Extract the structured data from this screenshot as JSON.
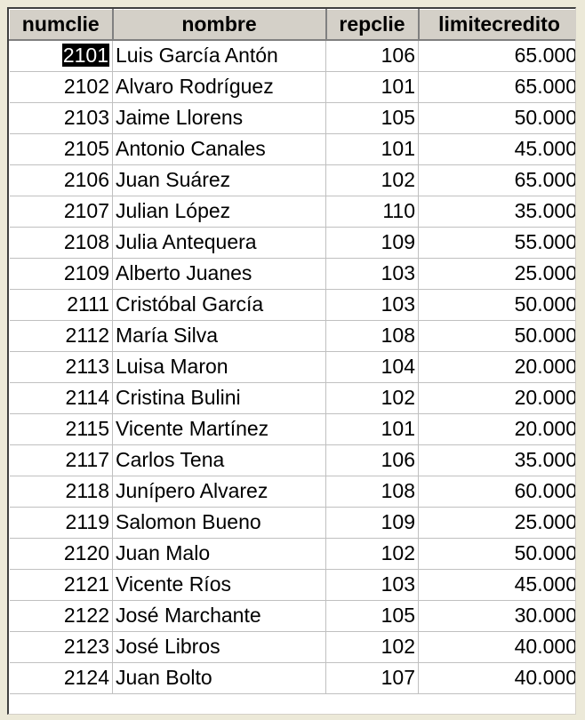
{
  "table": {
    "columns": [
      "numclie",
      "nombre",
      "repclie",
      "limitecredito"
    ],
    "selected_cell": {
      "row": 0,
      "column": 0
    },
    "rows": [
      [
        "2101",
        "Luis García Antón",
        "106",
        "65.000"
      ],
      [
        "2102",
        "Alvaro Rodríguez",
        "101",
        "65.000"
      ],
      [
        "2103",
        "Jaime Llorens",
        "105",
        "50.000"
      ],
      [
        "2105",
        "Antonio Canales",
        "101",
        "45.000"
      ],
      [
        "2106",
        "Juan Suárez",
        "102",
        "65.000"
      ],
      [
        "2107",
        "Julian López",
        "110",
        "35.000"
      ],
      [
        "2108",
        "Julia Antequera",
        "109",
        "55.000"
      ],
      [
        "2109",
        "Alberto Juanes",
        "103",
        "25.000"
      ],
      [
        "2111",
        "Cristóbal García",
        "103",
        "50.000"
      ],
      [
        "2112",
        "María Silva",
        "108",
        "50.000"
      ],
      [
        "2113",
        "Luisa Maron",
        "104",
        "20.000"
      ],
      [
        "2114",
        "Cristina Bulini",
        "102",
        "20.000"
      ],
      [
        "2115",
        "Vicente Martínez",
        "101",
        "20.000"
      ],
      [
        "2117",
        "Carlos Tena",
        "106",
        "35.000"
      ],
      [
        "2118",
        "Junípero Alvarez",
        "108",
        "60.000"
      ],
      [
        "2119",
        "Salomon Bueno",
        "109",
        "25.000"
      ],
      [
        "2120",
        "Juan Malo",
        "102",
        "50.000"
      ],
      [
        "2121",
        "Vicente Ríos",
        "103",
        "45.000"
      ],
      [
        "2122",
        "José Marchante",
        "105",
        "30.000"
      ],
      [
        "2123",
        "José Libros",
        "102",
        "40.000"
      ],
      [
        "2124",
        "Juan Bolto",
        "107",
        "40.000"
      ]
    ]
  }
}
